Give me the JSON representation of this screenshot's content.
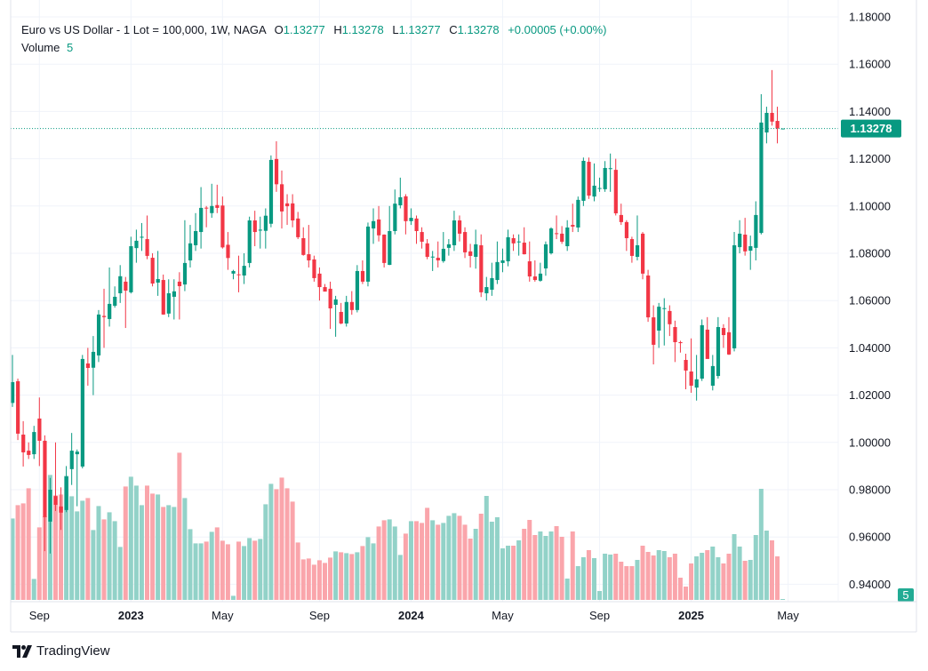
{
  "legend": {
    "title": "Euro vs US Dollar - 1 Lot = 100,000, 1W, NAGA",
    "open_label": "O",
    "open": "1.13277",
    "high_label": "H",
    "high": "1.13278",
    "low_label": "L",
    "low": "1.13277",
    "close_label": "C",
    "close": "1.13278",
    "change": "+0.00005 (+0.00%)",
    "volume_label": "Volume",
    "volume": "5"
  },
  "footer": {
    "brand": "TradingView"
  },
  "colors": {
    "up": "#089981",
    "down": "#f23645",
    "volume_up": "#92d2c8",
    "volume_down": "#faa5ab",
    "grid": "#f0f3fa"
  },
  "chart_data": {
    "type": "candlestick",
    "symbol": "EURUSD",
    "interval": "1W",
    "last_price": 1.13278,
    "last_price_label": "1.13278",
    "last_volume_label": "5",
    "ylim": [
      0.935,
      1.185
    ],
    "y_ticks": [
      "1.18000",
      "1.16000",
      "1.14000",
      "1.12000",
      "1.10000",
      "1.08000",
      "1.06000",
      "1.04000",
      "1.02000",
      "1.00000",
      "0.98000",
      "0.96000",
      "0.94000"
    ],
    "x_ticks": [
      {
        "label": "Sep",
        "date": "2022-09-05",
        "bold": false
      },
      {
        "label": "2023",
        "date": "2023-01-02",
        "bold": true
      },
      {
        "label": "May",
        "date": "2023-05-01",
        "bold": false
      },
      {
        "label": "Sep",
        "date": "2023-09-04",
        "bold": false
      },
      {
        "label": "2024",
        "date": "2024-01-01",
        "bold": true
      },
      {
        "label": "May",
        "date": "2024-04-29",
        "bold": false
      },
      {
        "label": "Sep",
        "date": "2024-09-02",
        "bold": false
      },
      {
        "label": "2025",
        "date": "2024-12-30",
        "bold": true
      },
      {
        "label": "May",
        "date": "2025-05-05",
        "bold": false
      }
    ],
    "grid": true,
    "ohlcv": [
      [
        1.0167,
        1.037,
        1.015,
        1.0255,
        458
      ],
      [
        1.0259,
        1.027,
        1.001,
        1.0037,
        533
      ],
      [
        1.0033,
        1.009,
        0.9898,
        0.9958,
        543
      ],
      [
        0.9965,
        1.0,
        0.993,
        0.9947,
        628
      ],
      [
        0.995,
        1.007,
        0.993,
        1.0044,
        118
      ],
      [
        1.0101,
        1.019,
        0.99,
        1.0007,
        408
      ],
      [
        1.0007,
        1.003,
        0.954,
        0.9684,
        470
      ],
      [
        0.9665,
        0.985,
        0.953,
        0.98,
        703
      ],
      [
        0.9773,
        1.0,
        0.971,
        0.9736,
        588
      ],
      [
        0.9729,
        0.981,
        0.963,
        0.9703,
        593
      ],
      [
        0.9714,
        0.99,
        0.9705,
        0.9856,
        698
      ],
      [
        0.9887,
        1.004,
        0.982,
        0.9965,
        583
      ],
      [
        0.995,
        0.997,
        0.973,
        0.9961,
        498
      ],
      [
        0.9898,
        1.037,
        0.989,
        1.0353,
        558
      ],
      [
        1.0334,
        1.04,
        1.024,
        1.0315,
        573
      ],
      [
        1.0316,
        1.045,
        1.02,
        1.0383,
        393
      ],
      [
        1.0368,
        1.056,
        1.034,
        1.0541,
        528
      ],
      [
        1.0535,
        1.065,
        1.04,
        1.053,
        453
      ],
      [
        1.0522,
        1.074,
        1.049,
        1.0586,
        493
      ],
      [
        1.0578,
        1.066,
        1.057,
        1.0616,
        443
      ],
      [
        1.0631,
        1.075,
        1.059,
        1.0703,
        298
      ],
      [
        1.068,
        1.07,
        1.0484,
        1.0642,
        638
      ],
      [
        1.0635,
        1.087,
        1.063,
        1.083,
        693
      ],
      [
        1.0822,
        1.09,
        1.076,
        1.0853,
        643
      ],
      [
        1.0866,
        1.0928,
        1.081,
        1.087,
        533
      ],
      [
        1.086,
        1.096,
        1.0775,
        1.0789,
        643
      ],
      [
        1.0781,
        1.08,
        1.066,
        1.0672,
        598
      ],
      [
        1.0676,
        1.081,
        1.062,
        1.0691,
        593
      ],
      [
        1.0687,
        1.071,
        1.054,
        1.0541,
        523
      ],
      [
        1.0545,
        1.069,
        1.053,
        1.0631,
        533
      ],
      [
        1.0616,
        1.069,
        1.052,
        1.0639,
        523
      ],
      [
        1.068,
        1.072,
        1.052,
        1.0661,
        828
      ],
      [
        1.0668,
        1.094,
        1.064,
        1.0759,
        573
      ],
      [
        1.077,
        1.092,
        1.074,
        1.0842,
        398
      ],
      [
        1.0834,
        1.097,
        1.081,
        1.0894,
        318
      ],
      [
        1.089,
        1.108,
        1.082,
        1.0992,
        318
      ],
      [
        1.0993,
        1.1,
        1.091,
        1.0992,
        328
      ],
      [
        1.097,
        1.1094,
        1.095,
        1.1,
        383
      ],
      [
        1.1004,
        1.109,
        1.097,
        1.0992,
        408
      ],
      [
        1.1002,
        1.104,
        1.082,
        1.0825,
        333
      ],
      [
        1.0836,
        1.089,
        1.073,
        1.078,
        313
      ],
      [
        1.0714,
        1.073,
        1.069,
        1.0725,
        23
      ],
      [
        1.0711,
        1.079,
        1.0635,
        1.0709,
        328
      ],
      [
        1.0706,
        1.08,
        1.067,
        1.0747,
        303
      ],
      [
        1.0759,
        1.0955,
        1.074,
        1.0939,
        348
      ],
      [
        1.0939,
        1.098,
        1.083,
        1.089,
        333
      ],
      [
        1.0896,
        1.0955,
        1.082,
        1.09,
        343
      ],
      [
        1.0895,
        1.099,
        1.082,
        1.0959,
        538
      ],
      [
        1.0925,
        1.1214,
        1.091,
        1.1195,
        653
      ],
      [
        1.1199,
        1.1274,
        1.106,
        1.1092,
        623
      ],
      [
        1.1092,
        1.115,
        1.0905,
        1.0977,
        688
      ],
      [
        1.1011,
        1.105,
        1.092,
        1.0999,
        628
      ],
      [
        1.1011,
        1.105,
        1.091,
        1.0939,
        553
      ],
      [
        1.0947,
        1.0975,
        1.086,
        1.0868,
        323
      ],
      [
        1.0864,
        1.091,
        1.079,
        1.0793,
        228
      ],
      [
        1.0796,
        1.092,
        1.074,
        1.077,
        233
      ],
      [
        1.0774,
        1.079,
        1.068,
        1.0695,
        198
      ],
      [
        1.0714,
        1.074,
        1.06,
        1.0657,
        223
      ],
      [
        1.0657,
        1.067,
        1.065,
        1.0638,
        208
      ],
      [
        1.065,
        1.068,
        1.048,
        1.0567,
        238
      ],
      [
        1.0582,
        1.062,
        1.0447,
        1.0605,
        273
      ],
      [
        1.0552,
        1.059,
        1.05,
        1.0503,
        268
      ],
      [
        1.0503,
        1.062,
        1.049,
        1.0594,
        263
      ],
      [
        1.0594,
        1.064,
        1.054,
        1.056,
        258
      ],
      [
        1.056,
        1.075,
        1.055,
        1.0725,
        268
      ],
      [
        1.0725,
        1.077,
        1.067,
        1.068,
        303
      ],
      [
        1.068,
        1.093,
        1.066,
        1.0913,
        353
      ],
      [
        1.0905,
        1.099,
        1.084,
        1.0936,
        318
      ],
      [
        1.0943,
        1.1,
        1.085,
        1.0876,
        413
      ],
      [
        1.0879,
        1.088,
        1.074,
        1.0759,
        448
      ],
      [
        1.0751,
        1.1,
        1.075,
        1.0894,
        453
      ],
      [
        1.0894,
        1.107,
        1.088,
        1.101,
        413
      ],
      [
        1.1003,
        1.112,
        1.099,
        1.1037,
        253
      ],
      [
        1.1041,
        1.105,
        1.088,
        1.0936,
        373
      ],
      [
        1.0936,
        1.099,
        1.092,
        1.095,
        443
      ],
      [
        1.0947,
        1.096,
        1.084,
        1.0894,
        443
      ],
      [
        1.089,
        1.091,
        1.082,
        1.0849,
        433
      ],
      [
        1.0842,
        1.086,
        1.0775,
        1.0785,
        518
      ],
      [
        1.0785,
        1.081,
        1.0725,
        1.0786,
        448
      ],
      [
        1.0781,
        1.085,
        1.074,
        1.077,
        423
      ],
      [
        1.0767,
        1.089,
        1.076,
        1.0819,
        433
      ],
      [
        1.0823,
        1.086,
        1.079,
        1.0838,
        473
      ],
      [
        1.0834,
        1.098,
        1.081,
        1.0939,
        488
      ],
      [
        1.0939,
        1.096,
        1.085,
        1.0883,
        473
      ],
      [
        1.089,
        1.091,
        1.078,
        1.0804,
        423
      ],
      [
        1.0808,
        1.084,
        1.074,
        1.0789,
        345
      ],
      [
        1.0785,
        1.09,
        1.0735,
        1.0838,
        400
      ],
      [
        1.0834,
        1.088,
        1.0615,
        1.0635,
        485
      ],
      [
        1.0631,
        1.07,
        1.06,
        1.0657,
        585
      ],
      [
        1.0646,
        1.076,
        1.062,
        1.0695,
        440
      ],
      [
        1.0687,
        1.085,
        1.067,
        1.0763,
        465
      ],
      [
        1.0759,
        1.082,
        1.072,
        1.077,
        290
      ],
      [
        1.0766,
        1.09,
        1.0745,
        1.0868,
        305
      ],
      [
        1.0864,
        1.088,
        1.081,
        1.0842,
        305
      ],
      [
        1.0849,
        1.088,
        1.079,
        1.085,
        335
      ],
      [
        1.0845,
        1.091,
        1.0795,
        1.0796,
        400
      ],
      [
        1.0766,
        1.085,
        1.068,
        1.0702,
        450
      ],
      [
        1.0702,
        1.077,
        1.068,
        1.0687,
        365
      ],
      [
        1.0684,
        1.076,
        1.068,
        1.0714,
        385
      ],
      [
        1.0736,
        1.085,
        1.0705,
        1.0838,
        360
      ],
      [
        1.08,
        1.091,
        1.0795,
        1.0905,
        385
      ],
      [
        1.0885,
        1.096,
        1.086,
        1.0883,
        415
      ],
      [
        1.0883,
        1.0915,
        1.084,
        1.0849,
        355
      ],
      [
        1.083,
        1.094,
        1.081,
        1.0909,
        120
      ],
      [
        1.092,
        1.101,
        1.089,
        1.0913,
        385
      ],
      [
        1.0909,
        1.104,
        1.089,
        1.1026,
        190
      ],
      [
        1.1022,
        1.1205,
        1.1,
        1.1191,
        240
      ],
      [
        1.1187,
        1.1205,
        1.103,
        1.1044,
        280
      ],
      [
        1.104,
        1.118,
        1.102,
        1.1086,
        235
      ],
      [
        1.1074,
        1.112,
        1.106,
        1.1076,
        50
      ],
      [
        1.1071,
        1.119,
        1.106,
        1.1161,
        260
      ],
      [
        1.1157,
        1.1222,
        1.106,
        1.116,
        255
      ],
      [
        1.1153,
        1.12,
        1.096,
        1.0969,
        260
      ],
      [
        1.0962,
        1.101,
        1.092,
        1.0932,
        215
      ],
      [
        1.0932,
        1.094,
        1.081,
        1.0864,
        190
      ],
      [
        1.086,
        1.087,
        1.076,
        1.0789,
        190
      ],
      [
        1.0785,
        1.096,
        1.077,
        1.0834,
        225
      ],
      [
        1.0883,
        1.089,
        1.069,
        1.0714,
        305
      ],
      [
        1.0706,
        1.073,
        1.051,
        1.0529,
        270
      ],
      [
        1.0529,
        1.058,
        1.033,
        1.0413,
        250
      ],
      [
        1.0473,
        1.059,
        1.04,
        1.0574,
        280
      ],
      [
        1.0567,
        1.061,
        1.041,
        1.0568,
        275
      ],
      [
        1.0556,
        1.058,
        1.045,
        1.05,
        240
      ],
      [
        1.0488,
        1.0515,
        1.034,
        1.0424,
        260
      ],
      [
        1.0424,
        1.043,
        1.038,
        1.042,
        125
      ],
      [
        1.0349,
        1.0375,
        1.0225,
        1.0304,
        75
      ],
      [
        1.03,
        1.044,
        1.021,
        1.024,
        205
      ],
      [
        1.0232,
        1.037,
        1.0177,
        1.0267,
        245
      ],
      [
        1.027,
        1.052,
        1.026,
        1.0496,
        265
      ],
      [
        1.0477,
        1.053,
        1.036,
        1.0353,
        280
      ],
      [
        1.024,
        1.037,
        1.022,
        1.0323,
        300
      ],
      [
        1.0281,
        1.053,
        1.027,
        1.0488,
        240
      ],
      [
        1.0484,
        1.05,
        1.04,
        1.0454,
        205
      ],
      [
        1.0466,
        1.053,
        1.037,
        1.0372,
        260
      ],
      [
        1.0398,
        1.089,
        1.0385,
        1.0834,
        370
      ],
      [
        1.0826,
        1.094,
        1.08,
        1.0883,
        300
      ],
      [
        1.0879,
        1.095,
        1.079,
        1.0808,
        220
      ],
      [
        1.0811,
        1.0875,
        1.073,
        1.083,
        225
      ],
      [
        1.0823,
        1.102,
        1.077,
        1.0962,
        365
      ],
      [
        1.0886,
        1.1473,
        1.088,
        1.1353,
        625
      ],
      [
        1.1311,
        1.142,
        1.1265,
        1.1394,
        390
      ],
      [
        1.1394,
        1.1575,
        1.134,
        1.1357,
        335
      ],
      [
        1.136,
        1.142,
        1.1265,
        1.1328,
        245
      ],
      [
        1.13277,
        1.13278,
        1.13277,
        1.13278,
        5
      ]
    ]
  }
}
